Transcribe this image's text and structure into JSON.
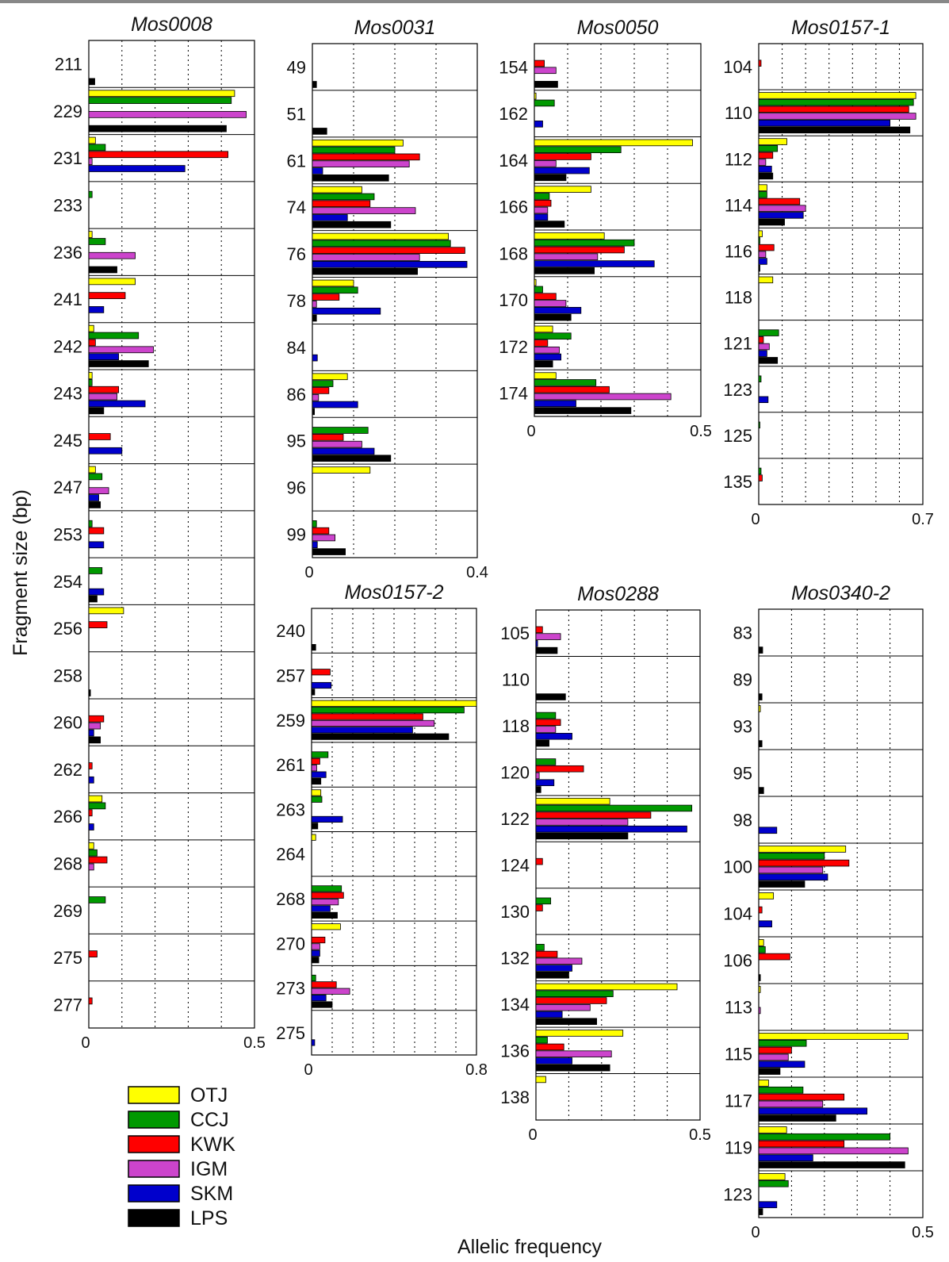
{
  "figure": {
    "ylabel": "Fragment size (bp)",
    "xlabel": "Allelic frequency"
  },
  "legend": [
    {
      "name": "OTJ",
      "color": "#FFFF00"
    },
    {
      "name": "CCJ",
      "color": "#009900"
    },
    {
      "name": "KWK",
      "color": "#FF0000"
    },
    {
      "name": "IGM",
      "color": "#CC44CC"
    },
    {
      "name": "SKM",
      "color": "#0000CC"
    },
    {
      "name": "LPS",
      "color": "#000000"
    }
  ],
  "chart_data": [
    {
      "type": "bar",
      "title": "Mos0008",
      "orientation": "horizontal",
      "xlim": [
        0,
        0.5
      ],
      "xticks": [
        "0",
        "0.5"
      ],
      "gridlines": [
        0.1,
        0.2,
        0.3,
        0.4
      ],
      "categories": [
        "211",
        "229",
        "231",
        "233",
        "236",
        "241",
        "242",
        "243",
        "245",
        "247",
        "253",
        "254",
        "256",
        "258",
        "260",
        "262",
        "266",
        "268",
        "269",
        "275",
        "277"
      ],
      "series": [
        {
          "name": "OTJ",
          "values": [
            0,
            0.44,
            0.02,
            0,
            0.01,
            0.14,
            0.015,
            0.01,
            0,
            0.02,
            0,
            0,
            0.105,
            0,
            0,
            0,
            0.04,
            0.015,
            0,
            0,
            0
          ]
        },
        {
          "name": "CCJ",
          "values": [
            0,
            0.43,
            0.05,
            0.01,
            0.05,
            0,
            0.15,
            0.01,
            0,
            0.04,
            0.01,
            0.04,
            0,
            0,
            0,
            0,
            0.05,
            0.025,
            0.05,
            0,
            0
          ]
        },
        {
          "name": "KWK",
          "values": [
            0,
            0,
            0.42,
            0,
            0,
            0.11,
            0.02,
            0.09,
            0.065,
            0,
            0.045,
            0,
            0.055,
            0,
            0.045,
            0.01,
            0.01,
            0.055,
            0,
            0.025,
            0.01
          ]
        },
        {
          "name": "IGM",
          "values": [
            0,
            0.475,
            0.01,
            0,
            0.14,
            0,
            0.195,
            0.085,
            0,
            0.06,
            0,
            0,
            0,
            0,
            0.035,
            0,
            0,
            0.015,
            0,
            0,
            0
          ]
        },
        {
          "name": "SKM",
          "values": [
            0,
            0,
            0.29,
            0,
            0,
            0.045,
            0.09,
            0.17,
            0.1,
            0.03,
            0.045,
            0.045,
            0,
            0,
            0.015,
            0.015,
            0.015,
            0,
            0,
            0,
            0
          ]
        },
        {
          "name": "LPS",
          "values": [
            0.018,
            0.415,
            0,
            0,
            0.085,
            0,
            0.18,
            0.045,
            0,
            0.035,
            0,
            0.025,
            0,
            0.005,
            0.035,
            0,
            0,
            0,
            0,
            0,
            0
          ]
        }
      ]
    },
    {
      "type": "bar",
      "title": "Mos0031",
      "orientation": "horizontal",
      "xlim": [
        0,
        0.4
      ],
      "xticks": [
        "0",
        "0.4"
      ],
      "gridlines": [
        0.1,
        0.2,
        0.3
      ],
      "categories": [
        "49",
        "51",
        "61",
        "74",
        "76",
        "78",
        "84",
        "86",
        "95",
        "96",
        "99"
      ],
      "series": [
        {
          "name": "OTJ",
          "values": [
            0,
            0,
            0.22,
            0.12,
            0.33,
            0.1,
            0,
            0.085,
            0,
            0.14,
            0
          ]
        },
        {
          "name": "CCJ",
          "values": [
            0,
            0,
            0.2,
            0.15,
            0.335,
            0.11,
            0,
            0.05,
            0.135,
            0,
            0.01
          ]
        },
        {
          "name": "KWK",
          "values": [
            0,
            0,
            0.26,
            0.14,
            0.37,
            0.065,
            0,
            0.04,
            0.075,
            0,
            0.04
          ]
        },
        {
          "name": "IGM",
          "values": [
            0,
            0,
            0.235,
            0.25,
            0.26,
            0.01,
            0,
            0.015,
            0.12,
            0,
            0.055
          ]
        },
        {
          "name": "SKM",
          "values": [
            0,
            0,
            0.025,
            0.085,
            0.375,
            0.165,
            0.012,
            0.11,
            0.15,
            0,
            0.012
          ]
        },
        {
          "name": "LPS",
          "values": [
            0.01,
            0.035,
            0.185,
            0.19,
            0.255,
            0.01,
            0,
            0.005,
            0.19,
            0,
            0.08
          ]
        }
      ]
    },
    {
      "type": "bar",
      "title": "Mos0050",
      "orientation": "horizontal",
      "xlim": [
        0,
        0.5
      ],
      "xticks": [
        "0",
        "0.5"
      ],
      "gridlines": [
        0.1,
        0.2,
        0.3,
        0.4
      ],
      "categories": [
        "154",
        "162",
        "164",
        "166",
        "168",
        "170",
        "172",
        "174"
      ],
      "series": [
        {
          "name": "OTJ",
          "values": [
            0,
            0.005,
            0.475,
            0.17,
            0.21,
            0.005,
            0.055,
            0.065
          ]
        },
        {
          "name": "CCJ",
          "values": [
            0,
            0.06,
            0.26,
            0.045,
            0.3,
            0.025,
            0.11,
            0.185
          ]
        },
        {
          "name": "KWK",
          "values": [
            0.03,
            0,
            0.17,
            0.05,
            0.27,
            0.065,
            0.04,
            0.225
          ]
        },
        {
          "name": "IGM",
          "values": [
            0.065,
            0,
            0.065,
            0.04,
            0.19,
            0.095,
            0.075,
            0.41
          ]
        },
        {
          "name": "SKM",
          "values": [
            0,
            0.025,
            0.165,
            0.04,
            0.36,
            0.14,
            0.08,
            0.125
          ]
        },
        {
          "name": "LPS",
          "values": [
            0.07,
            0,
            0.095,
            0.09,
            0.18,
            0.11,
            0.055,
            0.29
          ]
        }
      ]
    },
    {
      "type": "bar",
      "title": "Mos0157-1",
      "orientation": "horizontal",
      "xlim": [
        0,
        0.7
      ],
      "xticks": [
        "0",
        "0.7"
      ],
      "gridlines": [
        0.1,
        0.2,
        0.3,
        0.4,
        0.5,
        0.6
      ],
      "categories": [
        "104",
        "110",
        "112",
        "114",
        "116",
        "118",
        "121",
        "123",
        "125",
        "135"
      ],
      "series": [
        {
          "name": "OTJ",
          "values": [
            0,
            0.67,
            0.12,
            0.035,
            0.015,
            0.06,
            0,
            0,
            0,
            0
          ]
        },
        {
          "name": "CCJ",
          "values": [
            0,
            0.66,
            0.08,
            0.035,
            0.005,
            0,
            0.085,
            0.01,
            0.005,
            0.01
          ]
        },
        {
          "name": "KWK",
          "values": [
            0.01,
            0.64,
            0.06,
            0.175,
            0.065,
            0,
            0.02,
            0,
            0,
            0.015
          ]
        },
        {
          "name": "IGM",
          "values": [
            0,
            0.67,
            0.03,
            0.2,
            0.03,
            0,
            0.045,
            0,
            0,
            0
          ]
        },
        {
          "name": "SKM",
          "values": [
            0,
            0.56,
            0.055,
            0.19,
            0.035,
            0,
            0.035,
            0.04,
            0,
            0
          ]
        },
        {
          "name": "LPS",
          "values": [
            0,
            0.645,
            0.06,
            0.11,
            0.005,
            0,
            0.08,
            0,
            0,
            0
          ]
        }
      ]
    },
    {
      "type": "bar",
      "title": "Mos0157-2",
      "orientation": "horizontal",
      "xlim": [
        0,
        0.8
      ],
      "xticks": [
        "0",
        "0.8"
      ],
      "gridlines": [
        0.1,
        0.2,
        0.3,
        0.4,
        0.5,
        0.6,
        0.7
      ],
      "categories": [
        "240",
        "257",
        "259",
        "261",
        "263",
        "264",
        "268",
        "270",
        "273",
        "275"
      ],
      "series": [
        {
          "name": "OTJ",
          "values": [
            0,
            0,
            0.8,
            0,
            0.045,
            0.02,
            0,
            0.14,
            0,
            0
          ]
        },
        {
          "name": "CCJ",
          "values": [
            0,
            0,
            0.74,
            0.08,
            0.05,
            0,
            0.145,
            0,
            0.02,
            0
          ]
        },
        {
          "name": "KWK",
          "values": [
            0,
            0.09,
            0.54,
            0.04,
            0,
            0,
            0.155,
            0.065,
            0.12,
            0
          ]
        },
        {
          "name": "IGM",
          "values": [
            0,
            0,
            0.595,
            0.025,
            0,
            0,
            0.13,
            0.04,
            0.185,
            0
          ]
        },
        {
          "name": "SKM",
          "values": [
            0,
            0.095,
            0.49,
            0.07,
            0.15,
            0,
            0.09,
            0.04,
            0.07,
            0.015
          ]
        },
        {
          "name": "LPS",
          "values": [
            0.02,
            0.015,
            0.665,
            0.045,
            0.03,
            0,
            0.125,
            0.035,
            0.1,
            0
          ]
        }
      ]
    },
    {
      "type": "bar",
      "title": "Mos0288",
      "orientation": "horizontal",
      "xlim": [
        0,
        0.5
      ],
      "xticks": [
        "0",
        "0.5"
      ],
      "gridlines": [
        0.1,
        0.2,
        0.3,
        0.4
      ],
      "categories": [
        "105",
        "110",
        "118",
        "120",
        "122",
        "124",
        "130",
        "132",
        "134",
        "136",
        "138"
      ],
      "series": [
        {
          "name": "OTJ",
          "values": [
            0,
            0,
            0,
            0,
            0.225,
            0,
            0,
            0,
            0.43,
            0.265,
            0.03
          ]
        },
        {
          "name": "CCJ",
          "values": [
            0,
            0,
            0.06,
            0.06,
            0.475,
            0,
            0.045,
            0.025,
            0.235,
            0.035,
            0
          ]
        },
        {
          "name": "KWK",
          "values": [
            0.02,
            0,
            0.075,
            0.145,
            0.35,
            0.02,
            0.02,
            0.065,
            0.215,
            0.085,
            0
          ]
        },
        {
          "name": "IGM",
          "values": [
            0.075,
            0,
            0.06,
            0.01,
            0.28,
            0,
            0,
            0.14,
            0.165,
            0.23,
            0
          ]
        },
        {
          "name": "SKM",
          "values": [
            0.005,
            0,
            0.11,
            0.055,
            0.46,
            0,
            0,
            0.11,
            0.08,
            0.11,
            0
          ]
        },
        {
          "name": "LPS",
          "values": [
            0.065,
            0.09,
            0.04,
            0.015,
            0.28,
            0,
            0,
            0.1,
            0.185,
            0.225,
            0
          ]
        }
      ]
    },
    {
      "type": "bar",
      "title": "Mos0340-2",
      "orientation": "horizontal",
      "xlim": [
        0,
        0.5
      ],
      "xticks": [
        "0",
        "0.5"
      ],
      "gridlines": [
        0.1,
        0.2,
        0.3,
        0.4
      ],
      "categories": [
        "83",
        "89",
        "93",
        "95",
        "98",
        "100",
        "104",
        "106",
        "113",
        "115",
        "117",
        "119",
        "123"
      ],
      "series": [
        {
          "name": "OTJ",
          "values": [
            0,
            0,
            0.005,
            0,
            0,
            0.265,
            0.045,
            0.015,
            0.005,
            0.455,
            0.03,
            0.085,
            0.08
          ]
        },
        {
          "name": "CCJ",
          "values": [
            0,
            0,
            0,
            0,
            0,
            0.2,
            0,
            0.02,
            0,
            0.145,
            0.135,
            0.4,
            0.09
          ]
        },
        {
          "name": "KWK",
          "values": [
            0,
            0,
            0,
            0,
            0,
            0.275,
            0.01,
            0.095,
            0,
            0.1,
            0.26,
            0.26,
            0
          ]
        },
        {
          "name": "IGM",
          "values": [
            0,
            0,
            0,
            0,
            0,
            0.195,
            0,
            0,
            0.005,
            0.09,
            0.195,
            0.455,
            0
          ]
        },
        {
          "name": "SKM",
          "values": [
            0,
            0,
            0,
            0,
            0.055,
            0.21,
            0.04,
            0,
            0,
            0.14,
            0.33,
            0.165,
            0.055
          ]
        },
        {
          "name": "LPS",
          "values": [
            0.012,
            0.01,
            0.01,
            0.015,
            0,
            0.14,
            0,
            0.005,
            0,
            0.065,
            0.235,
            0.445,
            0.012
          ]
        }
      ]
    }
  ]
}
